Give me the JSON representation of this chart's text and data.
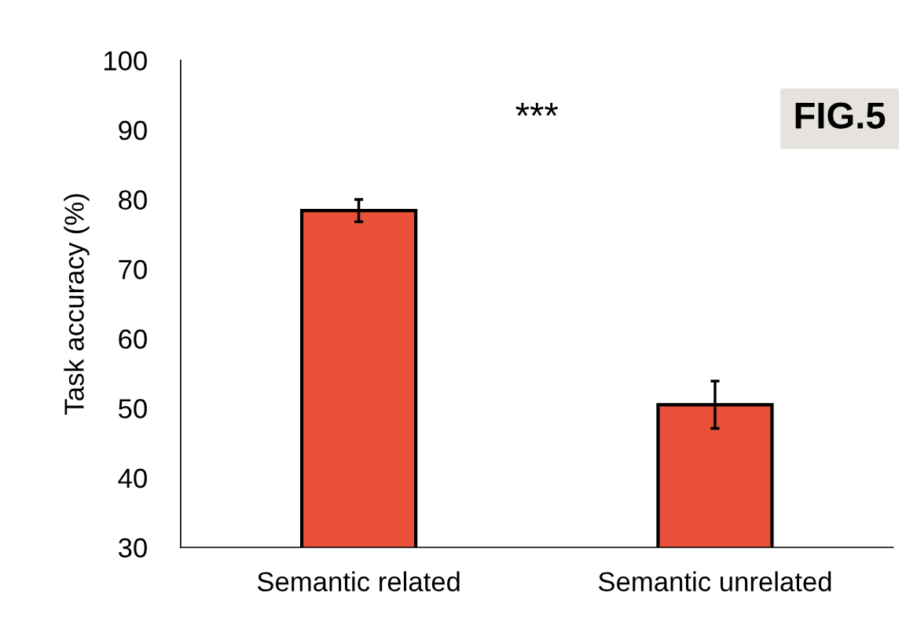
{
  "chart_data": {
    "type": "bar",
    "ylabel": "Task accuracy (%)",
    "categories": [
      "Semantic related",
      "Semantic unrelated"
    ],
    "values": [
      78.4,
      50.5
    ],
    "errors": [
      1.6,
      3.4
    ],
    "color": "#e8503a",
    "ylim": [
      30,
      100
    ],
    "yticks": [
      30,
      40,
      50,
      60,
      70,
      80,
      90,
      100
    ],
    "grid": false,
    "legend": false,
    "annotations": [
      "***",
      "FIG.5"
    ]
  }
}
